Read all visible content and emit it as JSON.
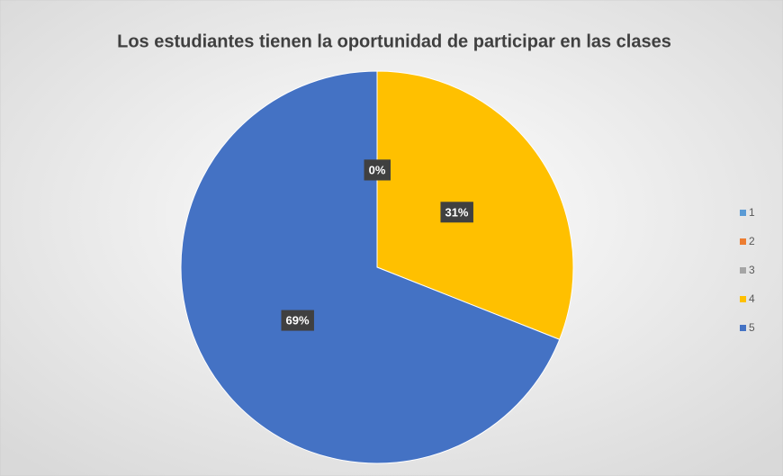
{
  "chart_data": {
    "type": "pie",
    "title": "Los estudiantes tienen la oportunidad de participar en las clases",
    "categories": [
      "1",
      "2",
      "3",
      "4",
      "5"
    ],
    "values": [
      0,
      0,
      0,
      31,
      69
    ],
    "value_labels": [
      "0%",
      "0%",
      "0%",
      "31%",
      "69%"
    ],
    "colors": [
      "#5b9bd5",
      "#ed7d31",
      "#a5a5a5",
      "#ffc000",
      "#4472c4"
    ],
    "legend": "right"
  }
}
